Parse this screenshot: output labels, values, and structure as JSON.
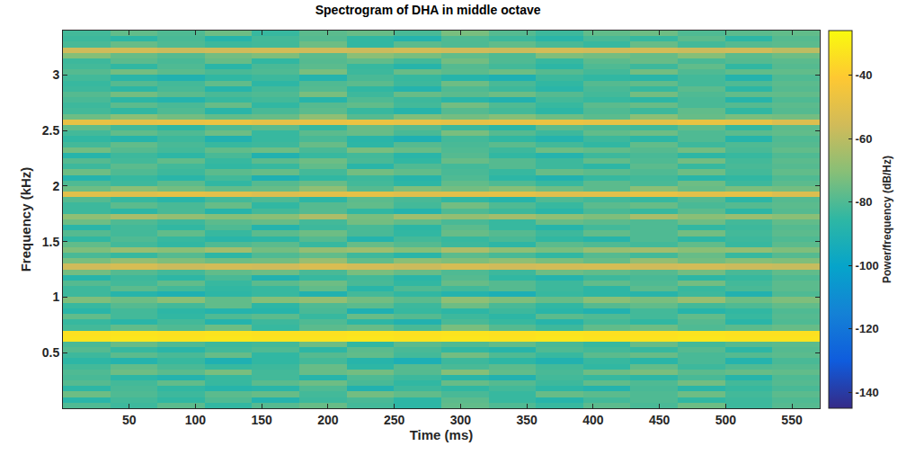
{
  "chart_data": {
    "type": "heatmap",
    "title": "Spectrogram of DHA in middle octave",
    "x_label": "Time (ms)",
    "y_label": "Frequency (kHz)",
    "colorbar_label": "Power/frequency (dB/Hz)",
    "grid": false,
    "xlim": [
      0,
      571
    ],
    "ylim": [
      0,
      3.4
    ],
    "xticks": [
      50,
      100,
      150,
      200,
      250,
      300,
      350,
      400,
      450,
      500,
      550
    ],
    "yticks": [
      0.5,
      1,
      1.5,
      2,
      2.5,
      3
    ],
    "zlim": [
      -145,
      -26
    ],
    "zticks": [
      -140,
      -120,
      -100,
      -80,
      -60,
      -40
    ],
    "x": [
      17.8,
      53.5,
      89.2,
      124.9,
      160.6,
      196.3,
      232.0,
      267.7,
      303.4,
      339.1,
      374.8,
      410.5,
      446.2,
      481.9,
      517.6,
      553.3
    ],
    "y": [
      0.025,
      0.075,
      0.125,
      0.175,
      0.225,
      0.275,
      0.325,
      0.375,
      0.425,
      0.475,
      0.525,
      0.575,
      0.625,
      0.675,
      0.725,
      0.775,
      0.825,
      0.875,
      0.925,
      0.975,
      1.025,
      1.075,
      1.125,
      1.175,
      1.225,
      1.275,
      1.325,
      1.375,
      1.425,
      1.475,
      1.525,
      1.575,
      1.625,
      1.675,
      1.725,
      1.775,
      1.825,
      1.875,
      1.925,
      1.975,
      2.025,
      2.075,
      2.125,
      2.175,
      2.225,
      2.275,
      2.325,
      2.375,
      2.425,
      2.475,
      2.525,
      2.575,
      2.625,
      2.675,
      2.725,
      2.775,
      2.825,
      2.875,
      2.925,
      2.975,
      3.025,
      3.075,
      3.125,
      3.175,
      3.225,
      3.275,
      3.325,
      3.375
    ],
    "z": [
      [
        -80,
        -83,
        -78,
        -85,
        -79,
        -76,
        -82,
        -86,
        -77,
        -80,
        -84,
        -78,
        -81,
        -75,
        -83,
        -79
      ],
      [
        -87,
        -82,
        -85,
        -80,
        -89,
        -83,
        -81,
        -86,
        -78,
        -84,
        -88,
        -82,
        -80,
        -85,
        -83,
        -80
      ],
      [
        -75,
        -80,
        -83,
        -78,
        -76,
        -82,
        -74,
        -77,
        -81,
        -84,
        -76,
        -78,
        -80,
        -75,
        -82,
        -78
      ],
      [
        -86,
        -81,
        -85,
        -88,
        -87,
        -80,
        -90,
        -83,
        -85,
        -82,
        -86,
        -89,
        -81,
        -87,
        -84,
        -81
      ],
      [
        -79,
        -82,
        -77,
        -84,
        -78,
        -75,
        -81,
        -85,
        -76,
        -79,
        -83,
        -77,
        -80,
        -74,
        -82,
        -79
      ],
      [
        -81,
        -86,
        -89,
        -84,
        -82,
        -88,
        -80,
        -83,
        -87,
        -90,
        -82,
        -84,
        -86,
        -81,
        -88,
        -80
      ],
      [
        -80,
        -75,
        -78,
        -73,
        -82,
        -76,
        -74,
        -79,
        -71,
        -77,
        -81,
        -75,
        -73,
        -78,
        -76,
        -77
      ],
      [
        -82,
        -77,
        -81,
        -84,
        -83,
        -76,
        -86,
        -79,
        -81,
        -78,
        -82,
        -85,
        -77,
        -83,
        -80,
        -79
      ],
      [
        -86,
        -89,
        -84,
        -91,
        -85,
        -82,
        -88,
        -92,
        -83,
        -86,
        -90,
        -84,
        -87,
        -81,
        -89,
        -81
      ],
      [
        -83,
        -78,
        -81,
        -76,
        -85,
        -79,
        -77,
        -82,
        -74,
        -80,
        -84,
        -78,
        -76,
        -81,
        -79,
        -78
      ],
      [
        -79,
        -84,
        -87,
        -82,
        -80,
        -86,
        -78,
        -81,
        -85,
        -88,
        -80,
        -82,
        -84,
        -79,
        -86,
        -79
      ],
      [
        -81,
        -76,
        -80,
        -83,
        -82,
        -75,
        -85,
        -78,
        -80,
        -77,
        -81,
        -84,
        -76,
        -82,
        -79,
        -78
      ],
      [
        -33,
        -32,
        -33,
        -32,
        -33,
        -33,
        -32,
        -33,
        -32,
        -33,
        -32,
        -33,
        -33,
        -32,
        -33,
        -33
      ],
      [
        -34,
        -33,
        -34,
        -33,
        -34,
        -34,
        -33,
        -34,
        -33,
        -34,
        -33,
        -34,
        -34,
        -33,
        -34,
        -34
      ],
      [
        -82,
        -77,
        -80,
        -75,
        -84,
        -78,
        -76,
        -81,
        -73,
        -79,
        -83,
        -77,
        -75,
        -80,
        -78,
        -76
      ],
      [
        -84,
        -87,
        -82,
        -89,
        -83,
        -80,
        -86,
        -90,
        -81,
        -84,
        -88,
        -82,
        -85,
        -79,
        -87,
        -80
      ],
      [
        -77,
        -82,
        -85,
        -80,
        -78,
        -84,
        -76,
        -79,
        -83,
        -86,
        -78,
        -80,
        -82,
        -77,
        -84,
        -79
      ],
      [
        -87,
        -82,
        -86,
        -89,
        -88,
        -81,
        -91,
        -84,
        -86,
        -83,
        -87,
        -90,
        -82,
        -88,
        -85,
        -80
      ],
      [
        -84,
        -79,
        -82,
        -77,
        -86,
        -80,
        -78,
        -83,
        -75,
        -81,
        -85,
        -79,
        -77,
        -82,
        -80,
        -77
      ],
      [
        -72,
        -75,
        -70,
        -77,
        -71,
        -68,
        -74,
        -78,
        -69,
        -72,
        -76,
        -70,
        -73,
        -67,
        -75,
        -72
      ],
      [
        -83,
        -88,
        -91,
        -86,
        -84,
        -90,
        -82,
        -85,
        -89,
        -92,
        -84,
        -86,
        -88,
        -83,
        -90,
        -80
      ],
      [
        -83,
        -78,
        -82,
        -85,
        -84,
        -77,
        -87,
        -80,
        -82,
        -79,
        -83,
        -86,
        -78,
        -84,
        -81,
        -78
      ],
      [
        -79,
        -82,
        -77,
        -84,
        -78,
        -75,
        -81,
        -85,
        -76,
        -79,
        -83,
        -77,
        -80,
        -74,
        -82,
        -78
      ],
      [
        -88,
        -83,
        -86,
        -81,
        -90,
        -84,
        -82,
        -87,
        -79,
        -85,
        -89,
        -83,
        -81,
        -86,
        -84,
        -80
      ],
      [
        -74,
        -79,
        -82,
        -77,
        -75,
        -81,
        -73,
        -76,
        -80,
        -83,
        -75,
        -77,
        -79,
        -74,
        -81,
        -77
      ],
      [
        -56,
        -54,
        -57,
        -55,
        -56,
        -53,
        -55,
        -57,
        -54,
        -56,
        -55,
        -54,
        -56,
        -55,
        -57,
        -58
      ],
      [
        -73,
        -68,
        -72,
        -75,
        -74,
        -67,
        -77,
        -70,
        -72,
        -69,
        -73,
        -76,
        -68,
        -74,
        -71,
        -72
      ],
      [
        -81,
        -84,
        -79,
        -86,
        -80,
        -77,
        -83,
        -87,
        -78,
        -81,
        -85,
        -79,
        -82,
        -76,
        -84,
        -79
      ],
      [
        -72,
        -67,
        -70,
        -65,
        -74,
        -68,
        -66,
        -71,
        -63,
        -69,
        -73,
        -67,
        -65,
        -70,
        -68,
        -72
      ],
      [
        -77,
        -82,
        -85,
        -80,
        -78,
        -84,
        -76,
        -79,
        -83,
        -86,
        -78,
        -80,
        -82,
        -77,
        -84,
        -78
      ],
      [
        -85,
        -80,
        -84,
        -87,
        -86,
        -79,
        -89,
        -82,
        -84,
        -81,
        -85,
        -88,
        -80,
        -86,
        -83,
        -80
      ],
      [
        -79,
        -82,
        -77,
        -84,
        -78,
        -75,
        -81,
        -85,
        -76,
        -79,
        -83,
        -77,
        -80,
        -74,
        -82,
        -78
      ],
      [
        -87,
        -82,
        -85,
        -80,
        -89,
        -83,
        -81,
        -86,
        -78,
        -84,
        -88,
        -82,
        -80,
        -85,
        -83,
        -79
      ],
      [
        -75,
        -80,
        -83,
        -78,
        -76,
        -82,
        -74,
        -77,
        -81,
        -84,
        -76,
        -78,
        -80,
        -75,
        -82,
        -77
      ],
      [
        -69,
        -64,
        -68,
        -71,
        -70,
        -63,
        -73,
        -66,
        -68,
        -65,
        -69,
        -72,
        -64,
        -70,
        -67,
        -70
      ],
      [
        -83,
        -86,
        -81,
        -88,
        -82,
        -79,
        -85,
        -89,
        -80,
        -83,
        -87,
        -81,
        -84,
        -78,
        -86,
        -79
      ],
      [
        -83,
        -78,
        -81,
        -76,
        -85,
        -79,
        -77,
        -82,
        -74,
        -80,
        -84,
        -78,
        -76,
        -81,
        -79,
        -78
      ],
      [
        -79,
        -84,
        -87,
        -82,
        -80,
        -86,
        -78,
        -81,
        -85,
        -88,
        -80,
        -82,
        -84,
        -79,
        -86,
        -79
      ],
      [
        -50,
        -51,
        -49,
        -50,
        -52,
        -50,
        -49,
        -51,
        -50,
        -49,
        -51,
        -50,
        -48,
        -50,
        -49,
        -52
      ],
      [
        -75,
        -70,
        -74,
        -77,
        -76,
        -69,
        -79,
        -72,
        -74,
        -71,
        -75,
        -78,
        -70,
        -76,
        -73,
        -74
      ],
      [
        -80,
        -83,
        -78,
        -85,
        -79,
        -76,
        -82,
        -86,
        -77,
        -80,
        -84,
        -78,
        -81,
        -75,
        -83,
        -78
      ],
      [
        -89,
        -84,
        -87,
        -82,
        -91,
        -85,
        -83,
        -88,
        -80,
        -86,
        -90,
        -84,
        -82,
        -87,
        -85,
        -80
      ],
      [
        -75,
        -80,
        -83,
        -78,
        -76,
        -82,
        -74,
        -77,
        -81,
        -84,
        -76,
        -78,
        -80,
        -75,
        -82,
        -77
      ],
      [
        -83,
        -78,
        -82,
        -85,
        -84,
        -77,
        -87,
        -80,
        -82,
        -79,
        -83,
        -86,
        -78,
        -84,
        -81,
        -79
      ],
      [
        -79,
        -82,
        -77,
        -84,
        -78,
        -75,
        -81,
        -85,
        -76,
        -79,
        -83,
        -77,
        -80,
        -74,
        -82,
        -78
      ],
      [
        -88,
        -83,
        -86,
        -81,
        -90,
        -84,
        -82,
        -87,
        -79,
        -85,
        -89,
        -83,
        -81,
        -86,
        -84,
        -80
      ],
      [
        -74,
        -79,
        -82,
        -77,
        -75,
        -81,
        -73,
        -76,
        -80,
        -83,
        -75,
        -77,
        -79,
        -74,
        -81,
        -77
      ],
      [
        -82,
        -77,
        -81,
        -84,
        -83,
        -76,
        -86,
        -79,
        -81,
        -78,
        -82,
        -85,
        -77,
        -83,
        -80,
        -79
      ],
      [
        -85,
        -88,
        -83,
        -90,
        -84,
        -81,
        -87,
        -91,
        -82,
        -85,
        -89,
        -83,
        -86,
        -80,
        -88,
        -80
      ],
      [
        -82,
        -77,
        -80,
        -75,
        -84,
        -78,
        -76,
        -81,
        -73,
        -79,
        -83,
        -77,
        -75,
        -80,
        -78,
        -77
      ],
      [
        -77,
        -82,
        -85,
        -80,
        -78,
        -84,
        -76,
        -79,
        -83,
        -86,
        -78,
        -80,
        -82,
        -77,
        -84,
        -78
      ],
      [
        -48,
        -49,
        -48,
        -47,
        -49,
        -48,
        -47,
        -48,
        -49,
        -48,
        -47,
        -48,
        -49,
        -47,
        -48,
        -52
      ],
      [
        -75,
        -70,
        -74,
        -77,
        -76,
        -69,
        -79,
        -72,
        -74,
        -71,
        -75,
        -78,
        -70,
        -76,
        -73,
        -74
      ],
      [
        -82,
        -85,
        -80,
        -87,
        -81,
        -78,
        -84,
        -88,
        -79,
        -82,
        -86,
        -80,
        -83,
        -77,
        -85,
        -79
      ],
      [
        -83,
        -78,
        -81,
        -76,
        -85,
        -79,
        -77,
        -82,
        -74,
        -80,
        -84,
        -78,
        -76,
        -81,
        -79,
        -78
      ],
      [
        -81,
        -86,
        -89,
        -84,
        -82,
        -88,
        -80,
        -83,
        -87,
        -90,
        -82,
        -84,
        -86,
        -81,
        -88,
        -80
      ],
      [
        -79,
        -74,
        -78,
        -81,
        -80,
        -73,
        -83,
        -76,
        -78,
        -75,
        -79,
        -82,
        -74,
        -80,
        -77,
        -77
      ],
      [
        -83,
        -86,
        -81,
        -88,
        -82,
        -79,
        -85,
        -89,
        -80,
        -83,
        -87,
        -81,
        -84,
        -78,
        -86,
        -79
      ],
      [
        -84,
        -79,
        -82,
        -77,
        -86,
        -80,
        -78,
        -83,
        -75,
        -81,
        -85,
        -79,
        -77,
        -82,
        -80,
        -78
      ],
      [
        -82,
        -87,
        -90,
        -85,
        -83,
        -89,
        -81,
        -84,
        -88,
        -91,
        -83,
        -85,
        -87,
        -82,
        -89,
        -80
      ],
      [
        -79,
        -74,
        -78,
        -81,
        -80,
        -73,
        -83,
        -76,
        -78,
        -75,
        -79,
        -82,
        -74,
        -80,
        -77,
        -77
      ],
      [
        -82,
        -85,
        -80,
        -87,
        -81,
        -78,
        -84,
        -88,
        -79,
        -82,
        -86,
        -80,
        -83,
        -77,
        -85,
        -79
      ],
      [
        -83,
        -78,
        -81,
        -76,
        -85,
        -79,
        -77,
        -82,
        -74,
        -80,
        -84,
        -78,
        -76,
        -81,
        -79,
        -78
      ],
      [
        -71,
        -76,
        -79,
        -74,
        -72,
        -78,
        -70,
        -73,
        -77,
        -80,
        -72,
        -74,
        -76,
        -71,
        -78,
        -75
      ],
      [
        -56,
        -55,
        -57,
        -56,
        -55,
        -56,
        -57,
        -55,
        -56,
        -57,
        -55,
        -56,
        -55,
        -57,
        -56,
        -60
      ],
      [
        -81,
        -76,
        -80,
        -83,
        -82,
        -75,
        -85,
        -78,
        -80,
        -77,
        -81,
        -84,
        -76,
        -82,
        -79,
        -78
      ],
      [
        -83,
        -86,
        -81,
        -88,
        -82,
        -79,
        -85,
        -89,
        -80,
        -83,
        -87,
        -81,
        -84,
        -78,
        -86,
        -79
      ],
      [
        -82,
        -77,
        -80,
        -75,
        -84,
        -78,
        -76,
        -81,
        -73,
        -79,
        -83,
        -77,
        -75,
        -80,
        -78,
        -77
      ]
    ]
  }
}
